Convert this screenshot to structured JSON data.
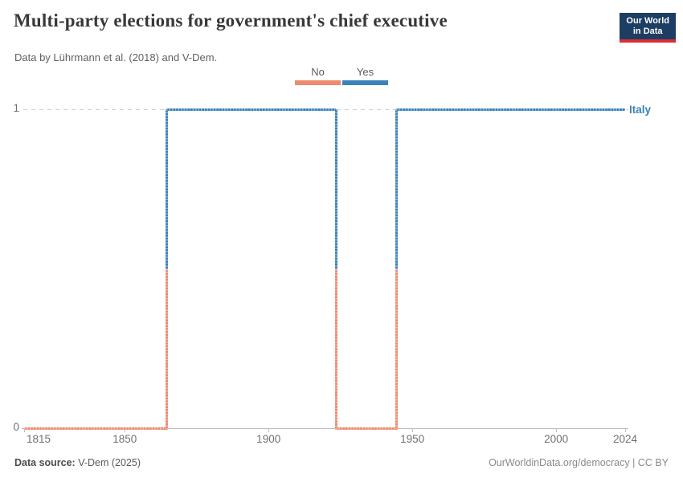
{
  "header": {
    "title": "Multi-party elections for government's chief executive",
    "subtitle": "Data by Lührmann et al. (2018) and V-Dem.",
    "logo": {
      "line1": "Our World",
      "line2": "in Data"
    }
  },
  "legend": {
    "items": [
      {
        "label": "No",
        "color": "#ee8a6e"
      },
      {
        "label": "Yes",
        "color": "#3b82ba"
      }
    ]
  },
  "chart_data": {
    "type": "line",
    "subtype": "step-categorical",
    "title": "Multi-party elections for government's chief executive",
    "series_label": "Italy",
    "xlim": [
      1815,
      2024
    ],
    "ylim": [
      0,
      1
    ],
    "x_ticks": [
      1815,
      1850,
      1900,
      1950,
      2000,
      2024
    ],
    "y_ticks": [
      1,
      0
    ],
    "grid": "dashed-line-at-1-only",
    "legend_position": "top-center",
    "colors": {
      "yes": "#3b82ba",
      "no": "#ee8a6e"
    },
    "steps": [
      {
        "value": 0,
        "label": "No",
        "from": 1815,
        "to": 1864
      },
      {
        "value": 1,
        "label": "Yes",
        "from": 1865,
        "to": 1923
      },
      {
        "value": 0,
        "label": "No",
        "from": 1924,
        "to": 1944
      },
      {
        "value": 1,
        "label": "Yes",
        "from": 1945,
        "to": 2024
      }
    ]
  },
  "footer": {
    "source_label": "Data source:",
    "source_text": " V-Dem (2025)",
    "credit": "OurWorldinData.org/democracy | CC BY"
  }
}
